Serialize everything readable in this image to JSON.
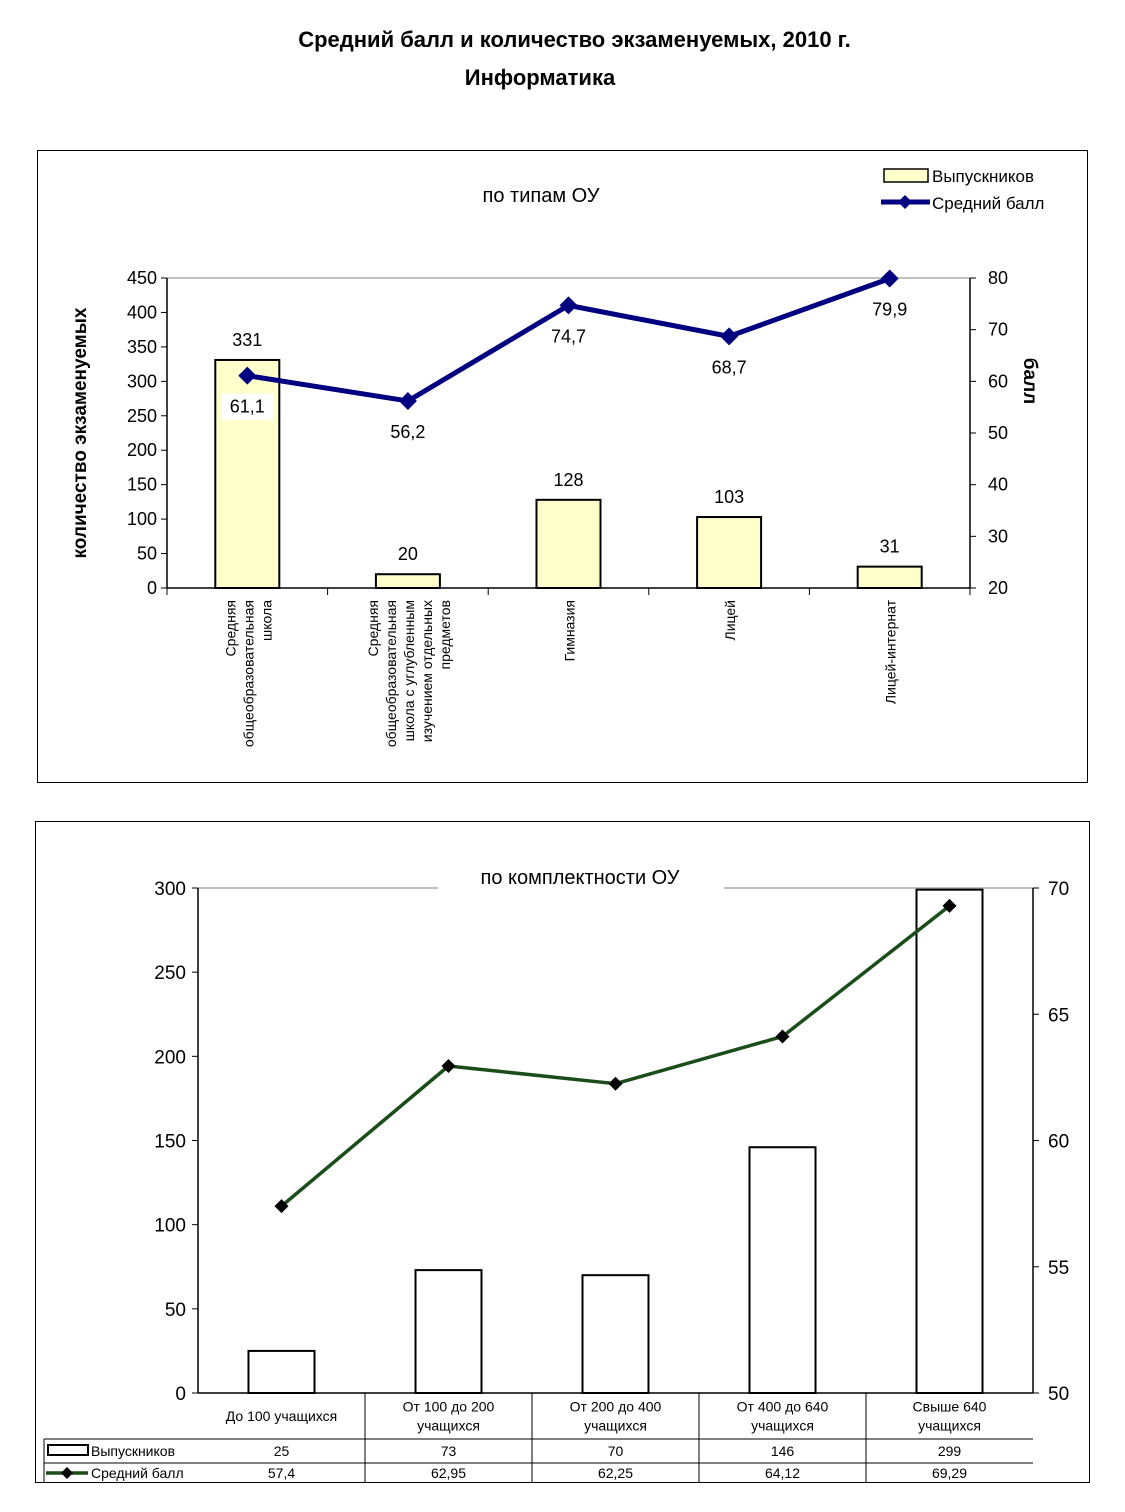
{
  "page": {
    "title": "Средний балл и количество экзаменуемых, 2010 г.",
    "subtitle": "Информатика"
  },
  "chart_data": [
    {
      "type": "bar",
      "title": "по типам ОУ",
      "categories": [
        "Средняя общеобразовательная школа",
        "Средняя общеобразовательная школа с углубленным изучением отдельных предметов",
        "Гимназия",
        "Лицей",
        "Лицей-интернат"
      ],
      "series": [
        {
          "name": "Выпускников",
          "type": "bar",
          "axis": "left",
          "values": [
            331,
            20,
            128,
            103,
            31
          ]
        },
        {
          "name": "Средний балл",
          "type": "line",
          "axis": "right",
          "values": [
            61.1,
            56.2,
            74.7,
            68.7,
            79.9
          ]
        }
      ],
      "value_labels": {
        "bars": [
          "331",
          "20",
          "128",
          "103",
          "31"
        ],
        "line": [
          "61,1",
          "56,2",
          "74,7",
          "68,7",
          "79,9"
        ]
      },
      "ylabel": "количество экзаменуемых",
      "ylabel_right": "балл",
      "ylim": [
        0,
        450
      ],
      "yticks": [
        "0",
        "50",
        "100",
        "150",
        "200",
        "250",
        "300",
        "350",
        "400",
        "450"
      ],
      "ylim_right": [
        20,
        80
      ],
      "yticks_right": [
        "20",
        "30",
        "40",
        "50",
        "60",
        "70",
        "80"
      ],
      "legend": "top-right",
      "grid": false,
      "colors": {
        "bar_fill": "#ffffcc",
        "line": "#000080"
      }
    },
    {
      "type": "bar",
      "title": "по комплектности ОУ",
      "categories": [
        "До 100 учащихся",
        "От 100 до 200 учащихся",
        "От 200 до 400 учащихся",
        "От 400 до 640 учащихся",
        "Свыше 640 учащихся"
      ],
      "series": [
        {
          "name": "Выпускников",
          "type": "bar",
          "axis": "left",
          "values": [
            25,
            73,
            70,
            146,
            299
          ]
        },
        {
          "name": "Средний балл",
          "type": "line",
          "axis": "right",
          "values": [
            57.4,
            62.95,
            62.25,
            64.12,
            69.29
          ]
        }
      ],
      "table": {
        "rows": [
          {
            "label": "Выпускников",
            "cells": [
              "25",
              "73",
              "70",
              "146",
              "299"
            ]
          },
          {
            "label": "Средний балл",
            "cells": [
              "57,4",
              "62,95",
              "62,25",
              "64,12",
              "69,29"
            ]
          }
        ]
      },
      "ylim": [
        0,
        300
      ],
      "yticks": [
        "0",
        "50",
        "100",
        "150",
        "200",
        "250",
        "300"
      ],
      "ylim_right": [
        50,
        70
      ],
      "yticks_right": [
        "50",
        "55",
        "60",
        "65",
        "70"
      ],
      "legend": "data-table",
      "grid": false,
      "colors": {
        "bar_fill": "#ffffff",
        "line": "#1a4d1a"
      }
    }
  ]
}
